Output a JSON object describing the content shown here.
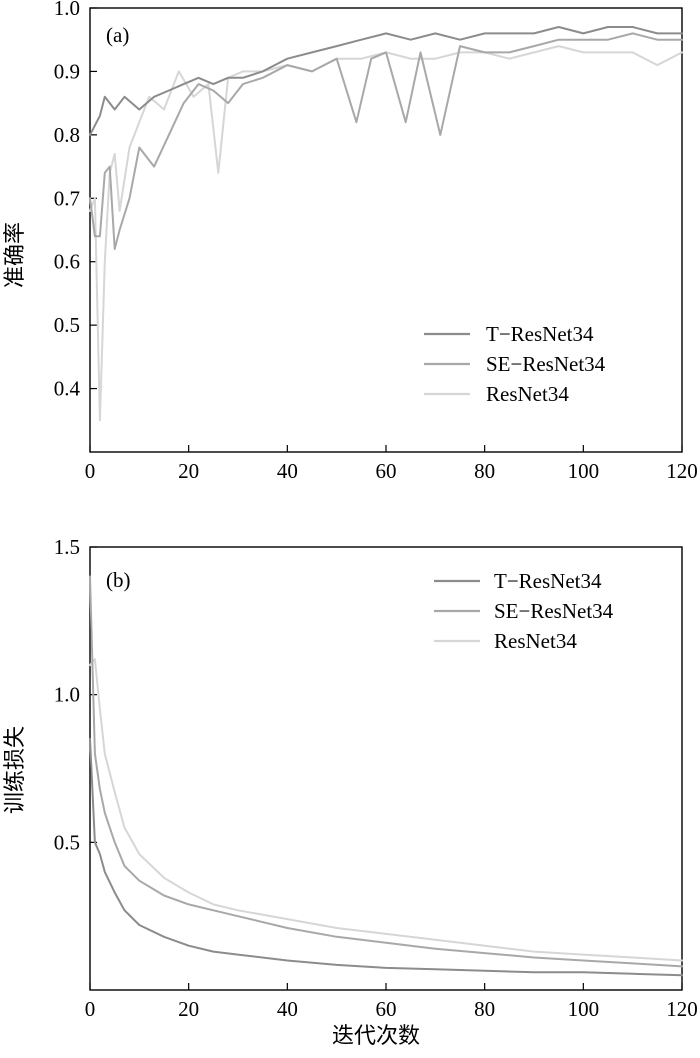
{
  "chart_data": [
    {
      "type": "line",
      "panel_label": "(a)",
      "title": "",
      "xlabel": "",
      "ylabel": "准确率",
      "xlim": [
        0,
        120
      ],
      "ylim": [
        0.3,
        1.0
      ],
      "x_ticks": [
        "0",
        "20",
        "40",
        "60",
        "80",
        "100",
        "120"
      ],
      "y_ticks": [
        "0.4",
        "0.5",
        "0.6",
        "0.7",
        "0.8",
        "0.9",
        "1.0"
      ],
      "grid": false,
      "legend_position": "lower-right",
      "series": [
        {
          "name": "T−ResNet34",
          "color": "#8c8c8c",
          "x": [
            0,
            2,
            3,
            5,
            7,
            10,
            13,
            16,
            19,
            22,
            25,
            28,
            31,
            35,
            40,
            45,
            50,
            55,
            60,
            65,
            70,
            75,
            80,
            85,
            90,
            95,
            100,
            105,
            110,
            115,
            120
          ],
          "y": [
            0.8,
            0.83,
            0.86,
            0.84,
            0.86,
            0.84,
            0.86,
            0.87,
            0.88,
            0.89,
            0.88,
            0.89,
            0.89,
            0.9,
            0.92,
            0.93,
            0.94,
            0.95,
            0.96,
            0.95,
            0.96,
            0.95,
            0.96,
            0.96,
            0.96,
            0.97,
            0.96,
            0.97,
            0.97,
            0.96,
            0.96
          ]
        },
        {
          "name": "SE−ResNet34",
          "color": "#a8a8a8",
          "x": [
            0,
            1,
            2,
            3,
            4,
            5,
            6,
            8,
            10,
            13,
            16,
            19,
            22,
            25,
            28,
            31,
            35,
            40,
            45,
            50,
            54,
            57,
            60,
            64,
            67,
            71,
            75,
            80,
            85,
            90,
            95,
            100,
            105,
            110,
            115,
            120
          ],
          "y": [
            0.7,
            0.64,
            0.64,
            0.74,
            0.75,
            0.62,
            0.65,
            0.7,
            0.78,
            0.75,
            0.8,
            0.85,
            0.88,
            0.87,
            0.85,
            0.88,
            0.89,
            0.91,
            0.9,
            0.92,
            0.82,
            0.92,
            0.93,
            0.82,
            0.93,
            0.8,
            0.94,
            0.93,
            0.93,
            0.94,
            0.95,
            0.95,
            0.95,
            0.96,
            0.95,
            0.95
          ]
        },
        {
          "name": "ResNet34",
          "color": "#d6d6d6",
          "x": [
            0,
            1,
            2,
            3,
            4,
            5,
            6,
            8,
            10,
            12,
            15,
            18,
            21,
            24,
            26,
            28,
            31,
            35,
            40,
            45,
            50,
            55,
            60,
            65,
            70,
            75,
            80,
            85,
            90,
            95,
            100,
            105,
            110,
            115,
            120
          ],
          "y": [
            0.68,
            0.7,
            0.35,
            0.6,
            0.74,
            0.77,
            0.68,
            0.78,
            0.82,
            0.86,
            0.84,
            0.9,
            0.86,
            0.88,
            0.74,
            0.89,
            0.9,
            0.9,
            0.91,
            0.9,
            0.92,
            0.92,
            0.93,
            0.92,
            0.92,
            0.93,
            0.93,
            0.92,
            0.93,
            0.94,
            0.93,
            0.93,
            0.93,
            0.91,
            0.93
          ]
        }
      ]
    },
    {
      "type": "line",
      "panel_label": "(b)",
      "title": "",
      "xlabel": "迭代次数",
      "ylabel": "训练损失",
      "xlim": [
        0,
        120
      ],
      "ylim": [
        0,
        1.5
      ],
      "x_ticks": [
        "0",
        "20",
        "40",
        "60",
        "80",
        "100",
        "120"
      ],
      "y_ticks": [
        "0.5",
        "1.0",
        "1.5"
      ],
      "grid": false,
      "legend_position": "top-right",
      "series": [
        {
          "name": "T−ResNet34",
          "color": "#8c8c8c",
          "x": [
            0,
            1,
            2,
            3,
            5,
            7,
            10,
            15,
            20,
            25,
            30,
            40,
            50,
            60,
            70,
            80,
            90,
            100,
            110,
            120
          ],
          "y": [
            0.85,
            0.5,
            0.46,
            0.4,
            0.33,
            0.27,
            0.22,
            0.18,
            0.15,
            0.13,
            0.12,
            0.1,
            0.085,
            0.075,
            0.07,
            0.065,
            0.06,
            0.06,
            0.055,
            0.05
          ]
        },
        {
          "name": "SE−ResNet34",
          "color": "#a8a8a8",
          "x": [
            0,
            1,
            2,
            3,
            5,
            7,
            10,
            15,
            20,
            25,
            30,
            40,
            50,
            60,
            70,
            80,
            90,
            100,
            110,
            120
          ],
          "y": [
            1.4,
            0.8,
            0.68,
            0.6,
            0.5,
            0.42,
            0.37,
            0.32,
            0.29,
            0.27,
            0.25,
            0.21,
            0.18,
            0.16,
            0.14,
            0.125,
            0.11,
            0.1,
            0.09,
            0.08
          ]
        },
        {
          "name": "ResNet34",
          "color": "#d6d6d6",
          "x": [
            0,
            1,
            2,
            3,
            5,
            7,
            10,
            15,
            20,
            25,
            30,
            40,
            50,
            60,
            70,
            80,
            90,
            100,
            110,
            120
          ],
          "y": [
            1.1,
            1.12,
            0.95,
            0.8,
            0.67,
            0.55,
            0.46,
            0.38,
            0.33,
            0.29,
            0.27,
            0.24,
            0.21,
            0.19,
            0.17,
            0.15,
            0.13,
            0.12,
            0.11,
            0.1
          ]
        }
      ]
    }
  ]
}
